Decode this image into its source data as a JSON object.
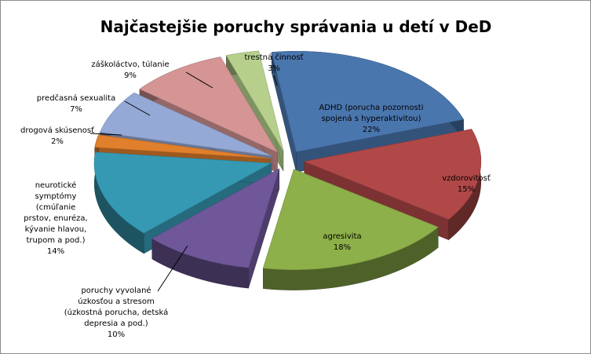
{
  "chart_data": {
    "type": "pie",
    "subtype": "exploded-3d",
    "title": "Najčastejšie poruchy správania u detí v DeD",
    "legend": "none",
    "slices": [
      {
        "label": "ADHD (porucha pozornosti spojená s hyperaktivitou)",
        "value": 22,
        "color": "#4a76ae"
      },
      {
        "label": "vzdorovitosť",
        "value": 15,
        "color": "#b14848"
      },
      {
        "label": "agresivita",
        "value": 18,
        "color": "#8db04a"
      },
      {
        "label": "poruchy vyvolané úzkosťou a stresom (úzkostná porucha, detská depresia a pod.)",
        "value": 10,
        "color": "#6f579a"
      },
      {
        "label": "neurotické symptómy (cmúľanie prstov, enuréza, kývanie hlavou, trupom a pod.)",
        "value": 14,
        "color": "#3699b3"
      },
      {
        "label": "drogová skúsenosť",
        "value": 2,
        "color": "#e07f2c"
      },
      {
        "label": "predčasná sexualita",
        "value": 7,
        "color": "#95a9d6"
      },
      {
        "label": "záškoláctvo, túlanie",
        "value": 9,
        "color": "#d49594"
      },
      {
        "label": "trestná činnosť",
        "value": 3,
        "color": "#b6d08c"
      }
    ],
    "data_labels": [
      {
        "lines": [
          "ADHD (porucha  pozornosti",
          "spojená s hyperaktivitou)"
        ],
        "pct": "22%"
      },
      {
        "lines": [
          "vzdorovitosť"
        ],
        "pct": "15%"
      },
      {
        "lines": [
          "agresivita"
        ],
        "pct": "18%"
      },
      {
        "lines": [
          "poruchy vyvolané",
          "úzkosťou a stresom",
          "(úzkostná porucha,  detská",
          "depresia a pod.)"
        ],
        "pct": "10%"
      },
      {
        "lines": [
          "neurotické",
          "symptómy",
          "(cmúľanie",
          "prstov,  enuréza,",
          "kývanie hlavou,",
          "trupom  a pod.)"
        ],
        "pct": "14%"
      },
      {
        "lines": [
          "drogová skúsenosť"
        ],
        "pct": "2%"
      },
      {
        "lines": [
          "predčasná sexualita"
        ],
        "pct": "7%"
      },
      {
        "lines": [
          "záškoláctvo,  túlanie"
        ],
        "pct": "9%"
      },
      {
        "lines": [
          "trestná činnosť"
        ],
        "pct": "3%"
      }
    ]
  }
}
